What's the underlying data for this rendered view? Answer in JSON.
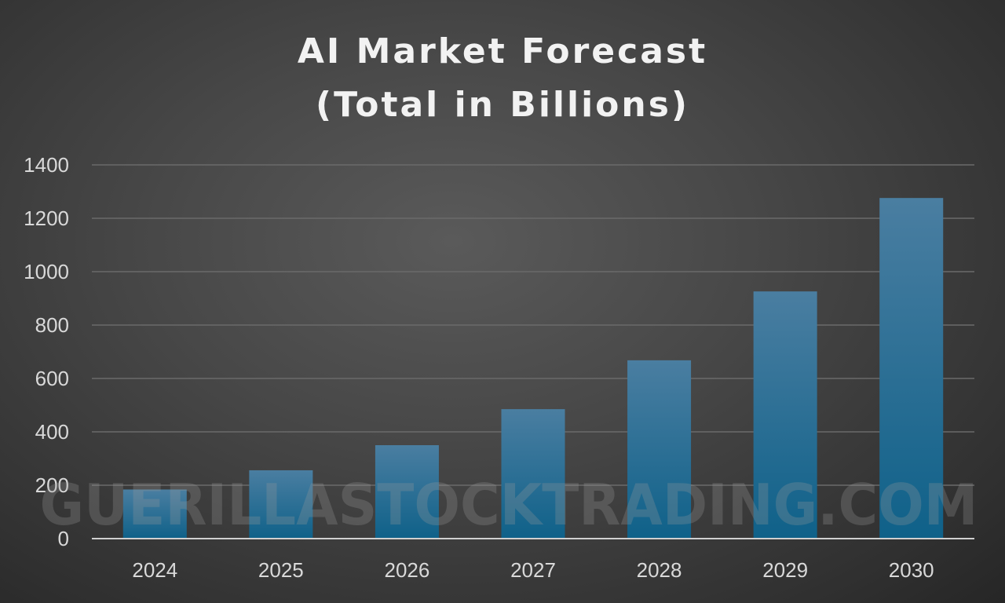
{
  "chart_data": {
    "type": "bar",
    "title_lines": [
      "AI Market Forecast",
      "(Total in Billions)"
    ],
    "categories": [
      "2024",
      "2025",
      "2026",
      "2027",
      "2028",
      "2029",
      "2030"
    ],
    "values": [
      184,
      256,
      350,
      485,
      668,
      926,
      1276
    ],
    "ylim": [
      0,
      1400
    ],
    "yticks": [
      "0",
      "200",
      "400",
      "600",
      "800",
      "1000",
      "1200",
      "1400"
    ],
    "xlabel": "",
    "ylabel": "",
    "grid": true,
    "legend": "none",
    "colors": {
      "bar_top": "#4a7ea1",
      "bar_bottom": "#0f6189",
      "gridline": "#6a6a6a",
      "axis": "#d0d0d0"
    }
  },
  "watermark": "GUERILLASTOCKTRADING.COM"
}
